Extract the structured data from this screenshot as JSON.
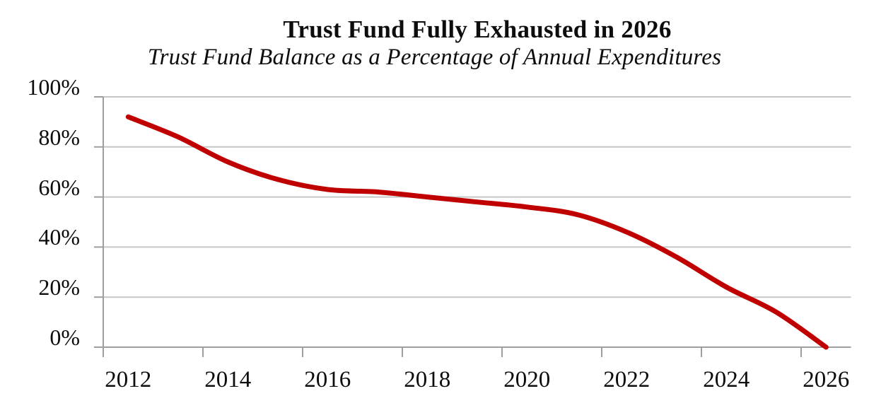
{
  "chart_data": {
    "type": "line",
    "title": "Trust Fund Fully Exhausted in 2026",
    "subtitle": "Trust Fund Balance as a Percentage of Annual Expenditures",
    "series": [
      {
        "name": "Trust Fund Balance as a Percentage of Annual Expenditures",
        "x": [
          2012,
          2013,
          2014,
          2015,
          2016,
          2017,
          2018,
          2019,
          2020,
          2021,
          2022,
          2023,
          2024,
          2025,
          2026
        ],
        "values": [
          92,
          84,
          74,
          67,
          63,
          62,
          60,
          58,
          56,
          53,
          46,
          36,
          24,
          14,
          0
        ]
      }
    ],
    "xlabel": "",
    "ylabel": "",
    "xlim": [
      2011.5,
      2026.5
    ],
    "ylim": [
      0,
      100
    ],
    "ytick_step": 20,
    "ytick_labels": [
      "0%",
      "20%",
      "40%",
      "60%",
      "80%",
      "100%"
    ],
    "xtick_years": [
      2012,
      2014,
      2016,
      2018,
      2020,
      2022,
      2024,
      2026
    ],
    "xtick_labels": [
      "2012",
      "2014",
      "2016",
      "2018",
      "2020",
      "2022",
      "2024",
      "2026"
    ],
    "grid": "horizontal",
    "legend": "none",
    "smoothed": true,
    "colors": {
      "line": "#C00000",
      "gridline": "#C6C6C6",
      "axis": "#9E9E9E",
      "text": "#0d0d0d",
      "background": "#FFFFFF"
    }
  }
}
